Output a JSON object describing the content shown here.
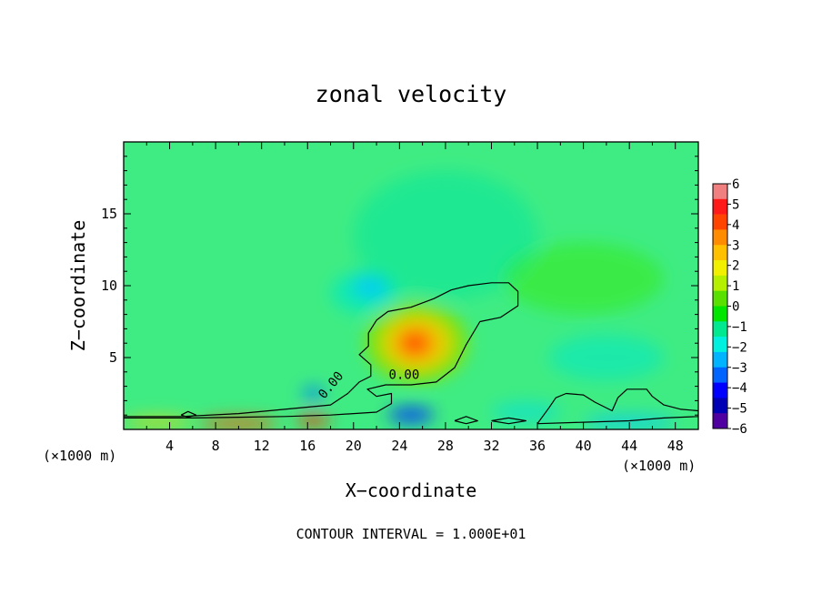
{
  "chart_data": {
    "type": "heatmap",
    "title": "zonal velocity",
    "xlabel": "X−coordinate",
    "ylabel": "Z−coordinate",
    "x_unit_left": "(×1000 m)",
    "x_unit_right": "(×1000 m)",
    "xlim": [
      0,
      50
    ],
    "ylim": [
      0,
      20
    ],
    "x_ticks": [
      4,
      8,
      12,
      16,
      20,
      24,
      28,
      32,
      36,
      40,
      44,
      48
    ],
    "y_ticks": [
      5,
      10,
      15
    ],
    "footer": "CONTOUR INTERVAL = 1.000E+01",
    "contour_labels": [
      {
        "text": "0.00",
        "x": 18.3,
        "z": 2.9,
        "angle": -50
      },
      {
        "text": "0.00",
        "x": 24.4,
        "z": 3.5,
        "angle": 0
      }
    ],
    "colorbar": {
      "min": -6,
      "max": 6,
      "tick_labels": [
        "6",
        "5",
        "4",
        "3",
        "2",
        "1",
        "0",
        "−1",
        "−2",
        "−3",
        "−4",
        "−5",
        "−6"
      ],
      "colors": [
        "#f08080",
        "#ff1a1a",
        "#ff4400",
        "#ff8c00",
        "#ffc000",
        "#f0f000",
        "#b4f000",
        "#5ae000",
        "#00e600",
        "#00e890",
        "#00f0e0",
        "#00b4ff",
        "#0064ff",
        "#0000ff",
        "#0000b4",
        "#5000a0"
      ]
    },
    "field": {
      "background": "#3fec83",
      "features": [
        {
          "x": 25.5,
          "z": 6.0,
          "rx": 4.5,
          "rz": 2.8,
          "color": "#8be000",
          "opacity": 0.9
        },
        {
          "x": 25.5,
          "z": 6.0,
          "rx": 3.0,
          "rz": 1.9,
          "color": "#f0d000",
          "opacity": 0.9
        },
        {
          "x": 25.4,
          "z": 6.0,
          "rx": 1.8,
          "rz": 1.2,
          "color": "#ff9000",
          "opacity": 0.9
        },
        {
          "x": 25.3,
          "z": 6.0,
          "rx": 1.0,
          "rz": 0.6,
          "color": "#ff3000",
          "opacity": 0.95
        },
        {
          "x": 21.0,
          "z": 9.5,
          "rx": 3.0,
          "rz": 1.5,
          "color": "#00e8c0",
          "opacity": 0.7
        },
        {
          "x": 21.5,
          "z": 9.9,
          "rx": 1.6,
          "rz": 0.8,
          "color": "#00c8ff",
          "opacity": 0.8
        },
        {
          "x": 28.0,
          "z": 13.5,
          "rx": 8.0,
          "rz": 4.5,
          "color": "#00e6a0",
          "opacity": 0.5
        },
        {
          "x": 40.0,
          "z": 10.5,
          "rx": 7.0,
          "rz": 2.5,
          "color": "#30e800",
          "opacity": 0.45
        },
        {
          "x": 42.0,
          "z": 5.0,
          "rx": 5.0,
          "rz": 1.6,
          "color": "#00e8c8",
          "opacity": 0.55
        },
        {
          "x": 16.5,
          "z": 2.5,
          "rx": 1.0,
          "rz": 0.5,
          "color": "#0078ff",
          "opacity": 0.75
        },
        {
          "x": 25.0,
          "z": 1.0,
          "rx": 2.0,
          "rz": 0.6,
          "color": "#0030ff",
          "opacity": 0.8
        },
        {
          "x": 10.0,
          "z": 0.4,
          "rx": 3.5,
          "rz": 0.4,
          "color": "#ff5000",
          "opacity": 0.85
        },
        {
          "x": 16.5,
          "z": 0.6,
          "rx": 1.5,
          "rz": 0.4,
          "color": "#ff2a00",
          "opacity": 0.85
        },
        {
          "x": 3.0,
          "z": 0.5,
          "rx": 3.0,
          "rz": 0.4,
          "color": "#f0d000",
          "opacity": 0.75
        },
        {
          "x": 44.0,
          "z": 0.5,
          "rx": 4.0,
          "rz": 0.5,
          "color": "#00c8ff",
          "opacity": 0.7
        },
        {
          "x": 35.0,
          "z": 1.2,
          "rx": 3.0,
          "rz": 0.7,
          "color": "#00e0e0",
          "opacity": 0.6
        }
      ]
    },
    "zero_contours": [
      [
        [
          0,
          0.9
        ],
        [
          5,
          0.9
        ],
        [
          10,
          1.1
        ],
        [
          14,
          1.4
        ],
        [
          18,
          1.7
        ],
        [
          19.5,
          2.5
        ],
        [
          20.5,
          3.3
        ],
        [
          21.5,
          3.7
        ],
        [
          21.5,
          4.5
        ],
        [
          20.5,
          5.2
        ],
        [
          21.3,
          5.8
        ],
        [
          21.3,
          6.7
        ],
        [
          22.0,
          7.6
        ],
        [
          23.0,
          8.2
        ],
        [
          25.0,
          8.5
        ],
        [
          27.0,
          9.1
        ],
        [
          28.5,
          9.7
        ],
        [
          30.0,
          10.0
        ],
        [
          32.0,
          10.2
        ],
        [
          33.5,
          10.2
        ],
        [
          34.3,
          9.6
        ],
        [
          34.3,
          8.6
        ],
        [
          32.8,
          7.8
        ],
        [
          31.0,
          7.5
        ],
        [
          29.8,
          5.9
        ],
        [
          28.8,
          4.3
        ],
        [
          27.2,
          3.3
        ],
        [
          25.0,
          3.1
        ],
        [
          22.8,
          3.1
        ],
        [
          21.2,
          2.8
        ],
        [
          22.0,
          2.3
        ],
        [
          23.3,
          2.5
        ],
        [
          23.3,
          1.8
        ],
        [
          22.0,
          1.2
        ],
        [
          18.0,
          1.0
        ],
        [
          14.0,
          0.9
        ],
        [
          10.0,
          0.85
        ],
        [
          6.0,
          0.8
        ],
        [
          0,
          0.8
        ]
      ],
      [
        [
          36.0,
          0.4
        ],
        [
          37.0,
          1.5
        ],
        [
          37.6,
          2.2
        ],
        [
          38.5,
          2.5
        ],
        [
          40.0,
          2.4
        ],
        [
          41.0,
          1.9
        ],
        [
          42.5,
          1.3
        ],
        [
          43.0,
          2.2
        ],
        [
          43.8,
          2.8
        ],
        [
          45.5,
          2.8
        ],
        [
          46.0,
          2.3
        ],
        [
          47.0,
          1.7
        ],
        [
          48.5,
          1.4
        ],
        [
          50,
          1.3
        ],
        [
          50,
          0.9
        ],
        [
          47.0,
          0.8
        ],
        [
          44.0,
          0.6
        ],
        [
          40.0,
          0.5
        ],
        [
          36.0,
          0.4
        ]
      ],
      [
        [
          32.0,
          0.6
        ],
        [
          33.5,
          0.8
        ],
        [
          35.0,
          0.6
        ],
        [
          33.5,
          0.4
        ],
        [
          32.0,
          0.6
        ]
      ],
      [
        [
          28.8,
          0.6
        ],
        [
          29.8,
          0.9
        ],
        [
          30.8,
          0.6
        ],
        [
          29.8,
          0.4
        ],
        [
          28.8,
          0.6
        ]
      ],
      [
        [
          5.0,
          1.0
        ],
        [
          5.6,
          1.25
        ],
        [
          6.3,
          1.0
        ],
        [
          5.6,
          0.85
        ],
        [
          5.0,
          1.0
        ]
      ]
    ]
  }
}
